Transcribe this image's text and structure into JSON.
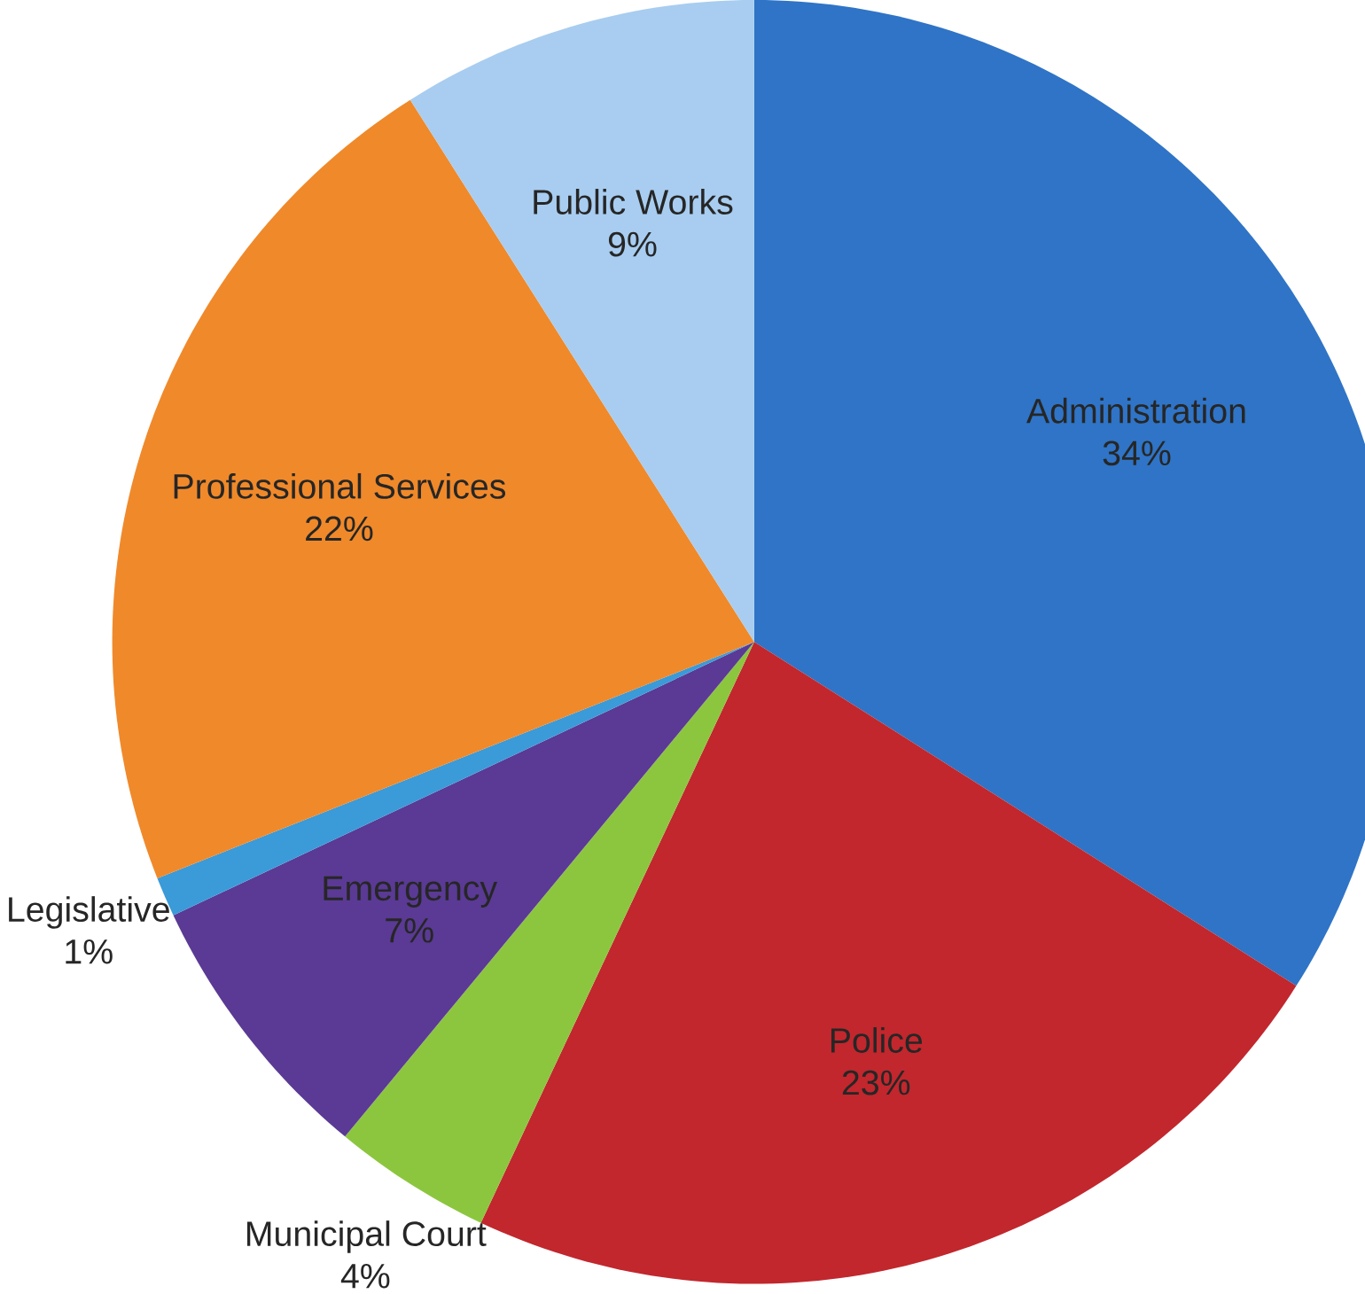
{
  "chart_data": {
    "type": "pie",
    "categories": [
      "Administration",
      "Police",
      "Municipal Court",
      "Emergency",
      "Legislative",
      "Professional Services",
      "Public Works"
    ],
    "values": [
      34,
      23,
      4,
      7,
      1,
      22,
      9
    ],
    "value_labels": [
      "34%",
      "23%",
      "4%",
      "7%",
      "1%",
      "22%",
      "9%"
    ],
    "colors": [
      "#2f74c6",
      "#c1272d",
      "#8cc63f",
      "#5a3a94",
      "#3b9ad8",
      "#f0892a",
      "#a8cdf0"
    ]
  }
}
